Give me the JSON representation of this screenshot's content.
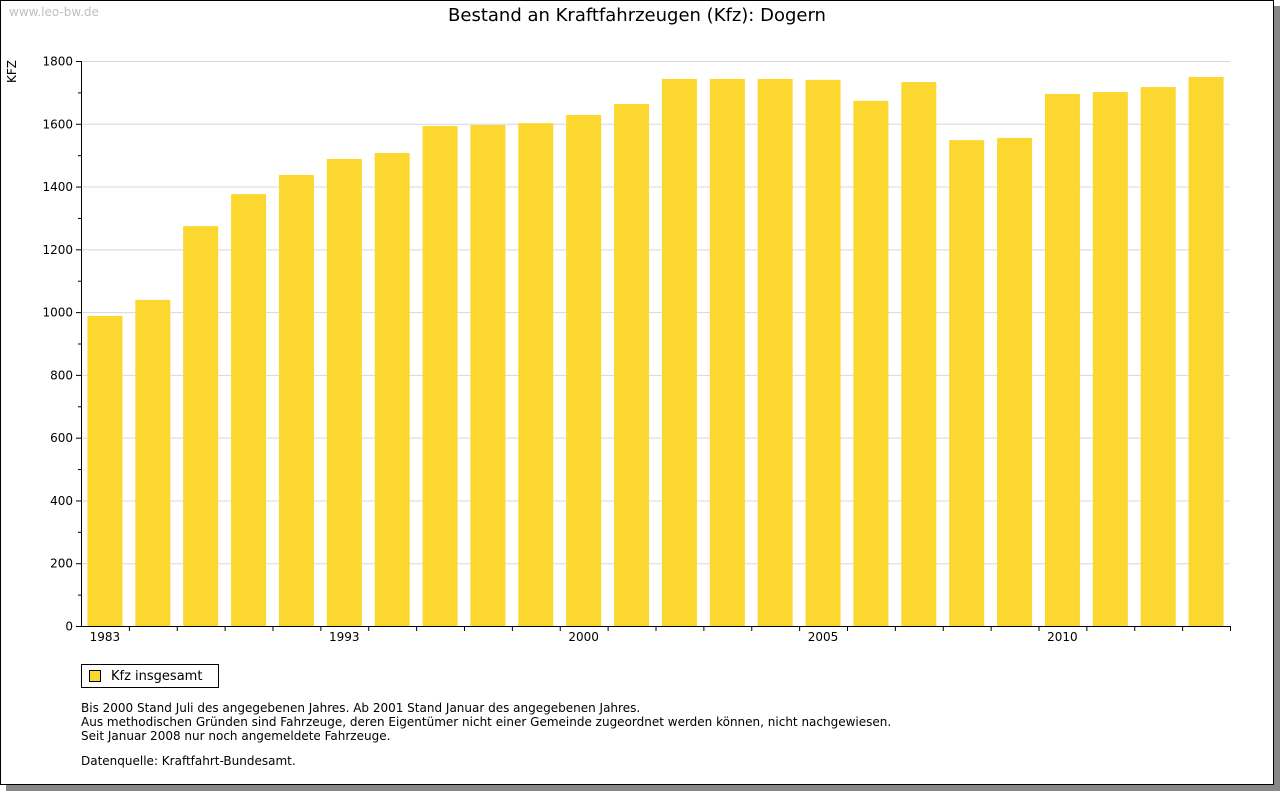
{
  "watermark": "www.leo-bw.de",
  "chart_data": {
    "type": "bar",
    "title": "Bestand an Kraftfahrzeugen (Kfz): Dogern",
    "ylabel": "KFZ",
    "xlabel": "",
    "ylim": [
      0,
      1800
    ],
    "yticks": [
      "0",
      "200",
      "400",
      "600",
      "800",
      "1000",
      "1200",
      "1400",
      "1600",
      "1800"
    ],
    "grid": true,
    "categories": [
      "1983",
      "",
      "",
      "",
      "",
      "1993",
      "",
      "",
      "",
      "",
      "2000",
      "",
      "",
      "",
      "",
      "2005",
      "",
      "",
      "",
      "",
      "2010",
      "",
      "",
      ""
    ],
    "values": [
      988,
      1039,
      1274,
      1376,
      1437,
      1488,
      1507,
      1593,
      1596,
      1602,
      1628,
      1663,
      1743,
      1743,
      1743,
      1740,
      1673,
      1733,
      1548,
      1555,
      1695,
      1701,
      1717,
      1749
    ],
    "series_name": "Kfz insgesamt",
    "bar_color": "#fcd72f",
    "legend_position": "bottom-left"
  },
  "notes": [
    "Bis 2000 Stand Juli des angegebenen Jahres. Ab 2001 Stand Januar des angegebenen Jahres.",
    "Aus methodischen Gründen sind Fahrzeuge, deren Eigentümer nicht einer Gemeinde zugeordnet werden können, nicht nachgewiesen.",
    "Seit Januar 2008 nur noch angemeldete Fahrzeuge."
  ],
  "source": "Datenquelle: Kraftfahrt-Bundesamt."
}
